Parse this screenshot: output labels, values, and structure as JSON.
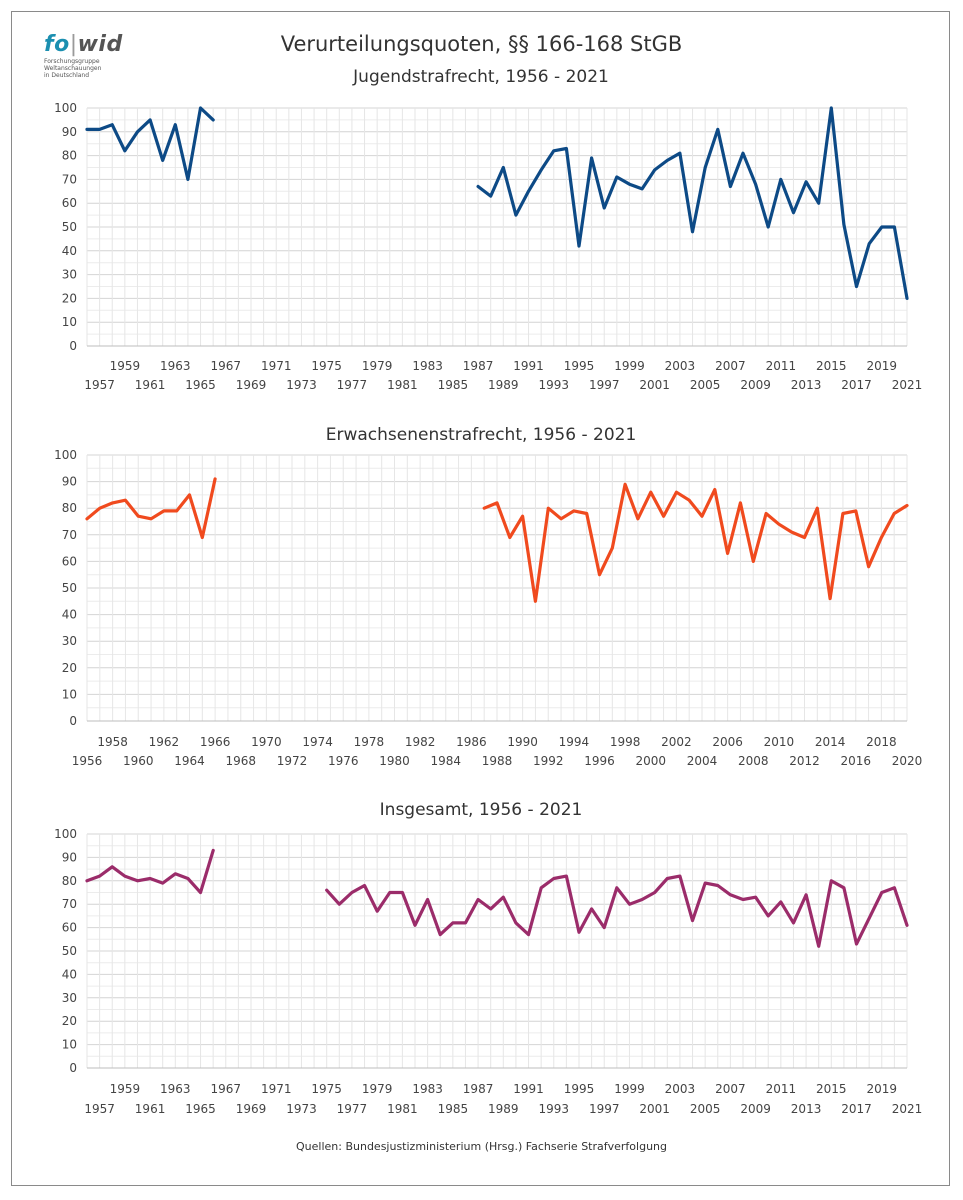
{
  "main_title": "Verurteilungsquoten, §§ 166-168 StGB",
  "logo": {
    "name": "fowid",
    "name_part1": "fo",
    "name_part2": "wid",
    "subtitle_lines": [
      "Forschungsgruppe",
      "Weltanschauungen",
      "in Deutschland"
    ]
  },
  "source_note": "Quellen: Bundesjustizministerium (Hrsg.) Fachserie Strafverfolgung",
  "chart_data": [
    {
      "type": "line",
      "title": "Jugendstrafrecht, 1956 - 2021",
      "color": "#0d4a86",
      "xlim": [
        1956,
        2021
      ],
      "ylim": [
        0,
        100
      ],
      "yticks": [
        0,
        10,
        20,
        30,
        40,
        50,
        60,
        70,
        80,
        90,
        100
      ],
      "xtick_labels_upper": [
        "1959",
        "1963",
        "1967",
        "1971",
        "1975",
        "1979",
        "1983",
        "1987",
        "1991",
        "1995",
        "1999",
        "2003",
        "2007",
        "2011",
        "2015",
        "2019"
      ],
      "xtick_labels_lower": [
        "1957",
        "1961",
        "1965",
        "1969",
        "1973",
        "1977",
        "1981",
        "1985",
        "1989",
        "1993",
        "1997",
        "2001",
        "2005",
        "2009",
        "2013",
        "2017",
        "2021"
      ],
      "segments": [
        {
          "x": [
            1956,
            1957,
            1958,
            1959,
            1960,
            1961,
            1962,
            1963,
            1964,
            1965,
            1966
          ],
          "y": [
            91,
            91,
            93,
            82,
            90,
            95,
            78,
            93,
            70,
            100,
            95
          ]
        },
        {
          "x": [
            1987,
            1988,
            1989,
            1990,
            1991,
            1992,
            1993,
            1994,
            1995,
            1996,
            1997,
            1998,
            1999,
            2000,
            2001,
            2002,
            2003,
            2004,
            2005,
            2006,
            2007,
            2008,
            2009,
            2010,
            2011,
            2012,
            2013,
            2014,
            2015,
            2016,
            2017,
            2018,
            2019,
            2020,
            2021
          ],
          "y": [
            67,
            63,
            75,
            55,
            65,
            74,
            82,
            83,
            42,
            79,
            58,
            71,
            68,
            66,
            74,
            78,
            81,
            48,
            75,
            91,
            67,
            81,
            68,
            50,
            70,
            56,
            69,
            60,
            100,
            51,
            25,
            43,
            50,
            50,
            20
          ]
        }
      ]
    },
    {
      "type": "line",
      "title": "Erwachsenenstrafrecht, 1956 - 2021",
      "color": "#f04a1e",
      "xlim": [
        1956,
        2020
      ],
      "ylim": [
        0,
        100
      ],
      "yticks": [
        0,
        10,
        20,
        30,
        40,
        50,
        60,
        70,
        80,
        90,
        100
      ],
      "xtick_labels_upper": [
        "1958",
        "1962",
        "1966",
        "1970",
        "1974",
        "1978",
        "1982",
        "1986",
        "1990",
        "1994",
        "1998",
        "2002",
        "2006",
        "2010",
        "2014",
        "2018"
      ],
      "xtick_labels_lower": [
        "1956",
        "1960",
        "1964",
        "1968",
        "1972",
        "1976",
        "1980",
        "1984",
        "1988",
        "1992",
        "1996",
        "2000",
        "2004",
        "2008",
        "2012",
        "2016",
        "2020"
      ],
      "segments": [
        {
          "x": [
            1956,
            1957,
            1958,
            1959,
            1960,
            1961,
            1962,
            1963,
            1964,
            1965,
            1966
          ],
          "y": [
            76,
            80,
            82,
            83,
            77,
            76,
            79,
            79,
            85,
            69,
            91
          ]
        },
        {
          "x": [
            1987,
            1988,
            1989,
            1990,
            1991,
            1992,
            1993,
            1994,
            1995,
            1996,
            1997,
            1998,
            1999,
            2000,
            2001,
            2002,
            2003,
            2004,
            2005,
            2006,
            2007,
            2008,
            2009,
            2010,
            2011,
            2012,
            2013,
            2014,
            2015,
            2016,
            2017,
            2018,
            2019,
            2020
          ],
          "y": [
            80,
            82,
            69,
            77,
            45,
            80,
            76,
            79,
            78,
            55,
            65,
            89,
            76,
            86,
            77,
            86,
            83,
            77,
            87,
            63,
            82,
            60,
            78,
            74,
            71,
            69,
            80,
            46,
            78,
            79,
            58,
            69,
            78,
            81
          ]
        }
      ]
    },
    {
      "type": "line",
      "title": "Insgesamt, 1956 - 2021",
      "color": "#9b2c6a",
      "xlim": [
        1956,
        2021
      ],
      "ylim": [
        0,
        100
      ],
      "yticks": [
        0,
        10,
        20,
        30,
        40,
        50,
        60,
        70,
        80,
        90,
        100
      ],
      "xtick_labels_upper": [
        "1959",
        "1963",
        "1967",
        "1971",
        "1975",
        "1979",
        "1983",
        "1987",
        "1991",
        "1995",
        "1999",
        "2003",
        "2007",
        "2011",
        "2015",
        "2019"
      ],
      "xtick_labels_lower": [
        "1957",
        "1961",
        "1965",
        "1969",
        "1973",
        "1977",
        "1981",
        "1985",
        "1989",
        "1993",
        "1997",
        "2001",
        "2005",
        "2009",
        "2013",
        "2017",
        "2021"
      ],
      "segments": [
        {
          "x": [
            1956,
            1957,
            1958,
            1959,
            1960,
            1961,
            1962,
            1963,
            1964,
            1965,
            1966
          ],
          "y": [
            80,
            82,
            86,
            82,
            80,
            81,
            79,
            83,
            81,
            75,
            93
          ]
        },
        {
          "x": [
            1975,
            1976,
            1977,
            1978,
            1979,
            1980,
            1981,
            1982,
            1983,
            1984,
            1985,
            1986,
            1987,
            1988,
            1989,
            1990,
            1991,
            1992,
            1993,
            1994,
            1995,
            1996,
            1997,
            1998,
            1999,
            2000,
            2001,
            2002,
            2003,
            2004,
            2005,
            2006,
            2007,
            2008,
            2009,
            2010,
            2011,
            2012,
            2013,
            2014,
            2015,
            2016,
            2017,
            2018,
            2019,
            2020,
            2021
          ],
          "y": [
            76,
            70,
            75,
            78,
            67,
            75,
            75,
            61,
            72,
            57,
            62,
            62,
            72,
            68,
            73,
            62,
            57,
            77,
            81,
            82,
            58,
            68,
            60,
            77,
            70,
            72,
            75,
            81,
            82,
            63,
            79,
            78,
            74,
            72,
            73,
            65,
            71,
            62,
            74,
            52,
            80,
            77,
            53,
            64,
            75,
            77,
            61
          ]
        }
      ]
    }
  ]
}
